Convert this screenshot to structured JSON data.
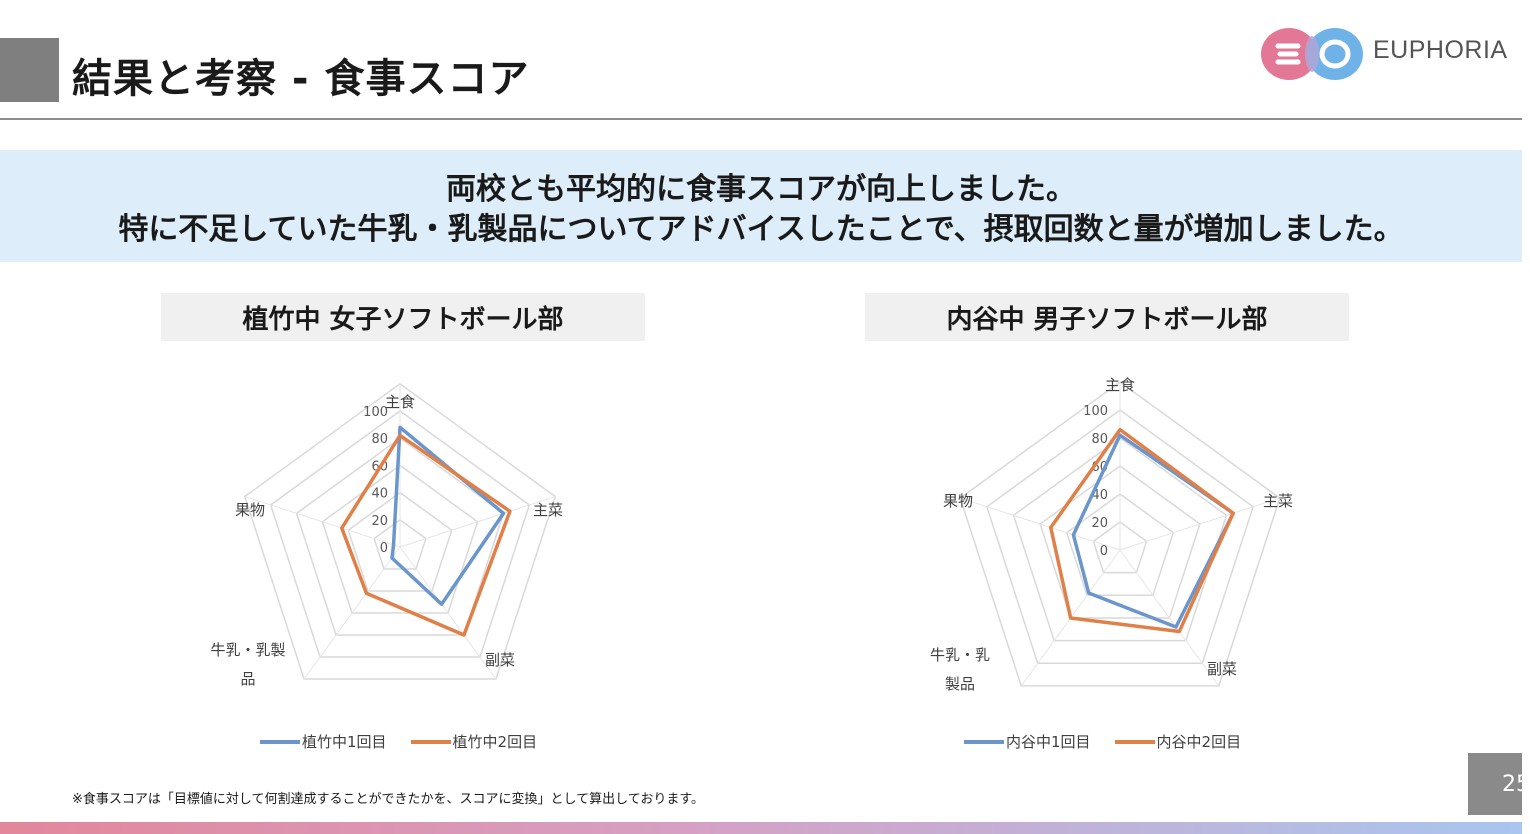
{
  "slide": {
    "title": "結果と考察 - 食事スコア",
    "brand": "EUPHORIA",
    "page_number": "25",
    "footnote": "※食事スコアは「目標値に対して何割達成することができたかを、スコアに変換」として算出しております。"
  },
  "banner": {
    "line1": "両校とも平均的に食事スコアが向上しました。",
    "line2": "特に不足していた牛乳・乳製品についてアドバイスしたことで、摂取回数と量が増加しました。"
  },
  "colors": {
    "series1": "#6b96cc",
    "series2": "#e08048",
    "grid": "#d9d9d9",
    "banner": "#ddeefa"
  },
  "chart_data": [
    {
      "type": "radar",
      "title": "植竹中 女子ソフトボール部",
      "categories": [
        "主食",
        "主菜",
        "副菜",
        "牛乳・乳製品",
        "果物"
      ],
      "category_lines": [
        [
          "主食"
        ],
        [
          "主菜"
        ],
        [
          "副菜"
        ],
        [
          "牛乳・乳製",
          "品"
        ],
        [
          "果物"
        ]
      ],
      "rlim": [
        0,
        100
      ],
      "ticks": [
        "0",
        "20",
        "40",
        "60",
        "80",
        "100"
      ],
      "series": [
        {
          "name": "植竹中1回目",
          "values": [
            88,
            80,
            52,
            10,
            5
          ]
        },
        {
          "name": "植竹中2回目",
          "values": [
            82,
            85,
            80,
            42,
            45
          ]
        }
      ],
      "legend": "bottom"
    },
    {
      "type": "radar",
      "title": "内谷中 男子ソフトボール部",
      "categories": [
        "主食",
        "主菜",
        "副菜",
        "牛乳・乳製品",
        "果物"
      ],
      "category_lines": [
        [
          "主食"
        ],
        [
          "主菜"
        ],
        [
          "副菜"
        ],
        [
          "牛乳・乳",
          "製品"
        ],
        [
          "果物"
        ]
      ],
      "rlim": [
        0,
        100
      ],
      "ticks": [
        "0",
        "20",
        "40",
        "60",
        "80",
        "100"
      ],
      "series": [
        {
          "name": "内谷中1回目",
          "values": [
            82,
            85,
            68,
            38,
            35
          ]
        },
        {
          "name": "内谷中2回目",
          "values": [
            86,
            85,
            72,
            60,
            52
          ]
        }
      ],
      "legend": "bottom"
    }
  ]
}
